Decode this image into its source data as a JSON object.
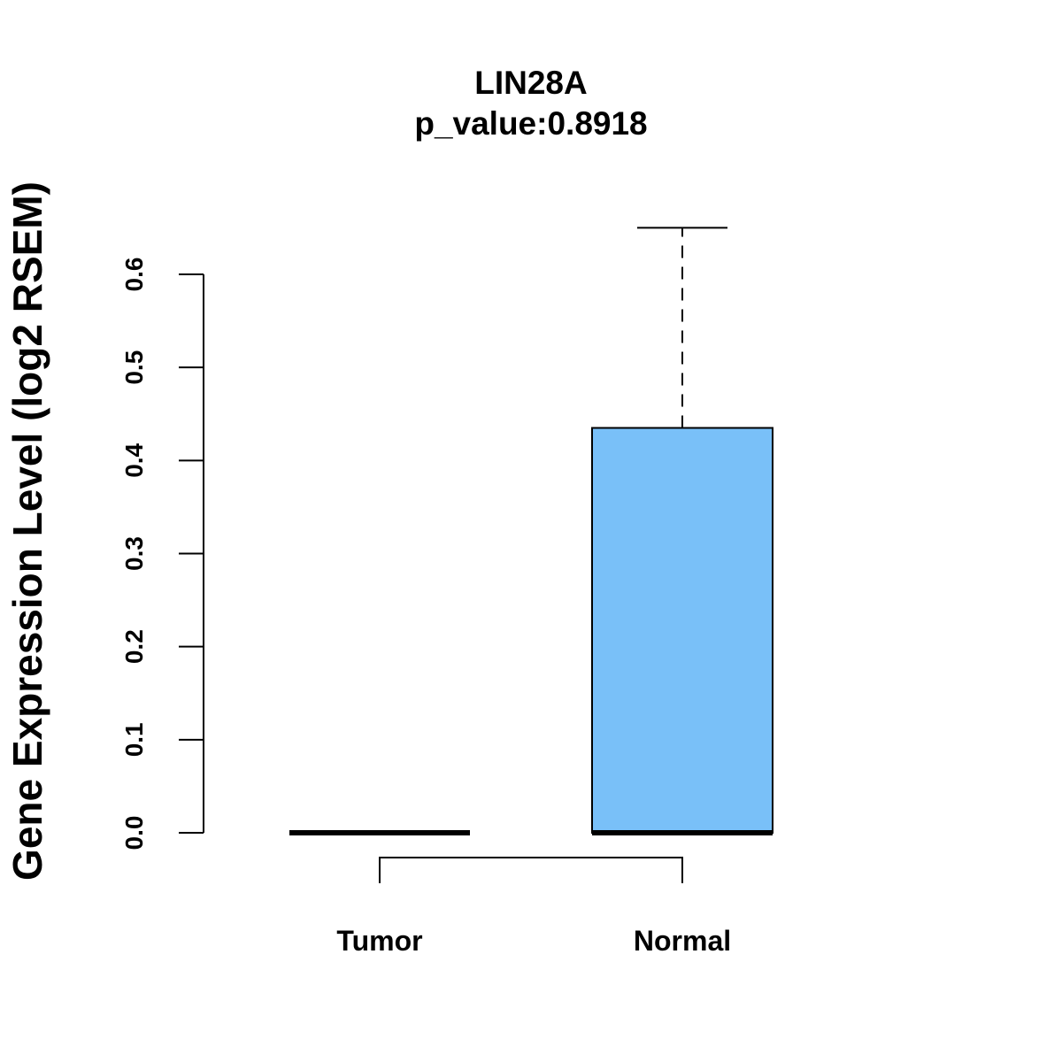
{
  "chart_data": {
    "type": "box",
    "title": "LIN28A",
    "subtitle": "p_value:0.8918",
    "xlabel": "",
    "ylabel": "Gene Expression Level (log2 RSEM)",
    "ylim": [
      0,
      0.6
    ],
    "yticks": [
      0.0,
      0.1,
      0.2,
      0.3,
      0.4,
      0.5,
      0.6
    ],
    "ytick_labels": [
      "0.0",
      "0.1",
      "0.2",
      "0.3",
      "0.4",
      "0.5",
      "0.6"
    ],
    "categories": [
      "Tumor",
      "Normal"
    ],
    "boxes": [
      {
        "name": "Tumor",
        "min": 0.0,
        "q1": 0.0,
        "median": 0.0,
        "q3": 0.0,
        "max": 0.0,
        "color": "#ffffff"
      },
      {
        "name": "Normal",
        "min": 0.0,
        "q1": 0.0,
        "median": 0.0,
        "q3": 0.435,
        "max": 0.65,
        "color": "#79c0f8"
      }
    ],
    "comparison_bracket": [
      "Tumor",
      "Normal"
    ]
  }
}
